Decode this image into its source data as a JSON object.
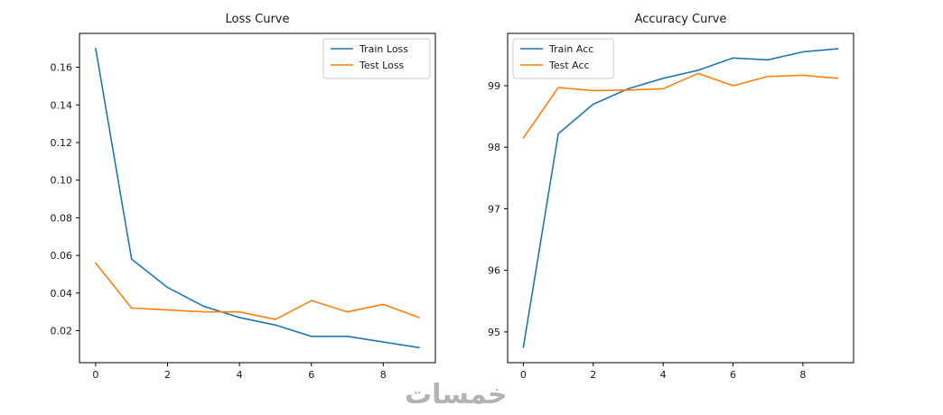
{
  "watermark": "خمسات",
  "chart_data": [
    {
      "type": "line",
      "title": "Loss Curve",
      "xlabel": "",
      "ylabel": "",
      "x": [
        0,
        1,
        2,
        3,
        4,
        5,
        6,
        7,
        8,
        9
      ],
      "series": [
        {
          "name": "Train Loss",
          "color": "#1f77b4",
          "values": [
            0.17,
            0.058,
            0.043,
            0.033,
            0.027,
            0.023,
            0.017,
            0.017,
            0.014,
            0.011
          ]
        },
        {
          "name": "Test Loss",
          "color": "#ff7f0e",
          "values": [
            0.056,
            0.032,
            0.031,
            0.03,
            0.03,
            0.026,
            0.036,
            0.03,
            0.034,
            0.027
          ]
        }
      ],
      "xlim": [
        -0.45,
        9.45
      ],
      "ylim": [
        0.003,
        0.178
      ],
      "xtick_values": [
        0,
        2,
        4,
        6,
        8
      ],
      "xtick_labels": [
        "0",
        "2",
        "4",
        "6",
        "8"
      ],
      "ytick_values": [
        0.02,
        0.04,
        0.06,
        0.08,
        0.1,
        0.12,
        0.14,
        0.16
      ],
      "ytick_labels": [
        "0.02",
        "0.04",
        "0.06",
        "0.08",
        "0.10",
        "0.12",
        "0.14",
        "0.16"
      ],
      "grid": false,
      "legend_position": "top-right"
    },
    {
      "type": "line",
      "title": "Accuracy Curve",
      "xlabel": "",
      "ylabel": "",
      "x": [
        0,
        1,
        2,
        3,
        4,
        5,
        6,
        7,
        8,
        9
      ],
      "series": [
        {
          "name": "Train Acc",
          "color": "#1f77b4",
          "values": [
            94.75,
            98.22,
            98.7,
            98.95,
            99.12,
            99.25,
            99.45,
            99.42,
            99.55,
            99.6
          ]
        },
        {
          "name": "Test Acc",
          "color": "#ff7f0e",
          "values": [
            98.15,
            98.97,
            98.92,
            98.93,
            98.95,
            99.2,
            99.0,
            99.15,
            99.17,
            99.12
          ]
        }
      ],
      "xlim": [
        -0.45,
        9.45
      ],
      "ylim": [
        94.5,
        99.85
      ],
      "xtick_values": [
        0,
        2,
        4,
        6,
        8
      ],
      "xtick_labels": [
        "0",
        "2",
        "4",
        "6",
        "8"
      ],
      "ytick_values": [
        95,
        96,
        97,
        98,
        99
      ],
      "ytick_labels": [
        "95",
        "96",
        "97",
        "98",
        "99"
      ],
      "grid": false,
      "legend_position": "top-left"
    }
  ]
}
